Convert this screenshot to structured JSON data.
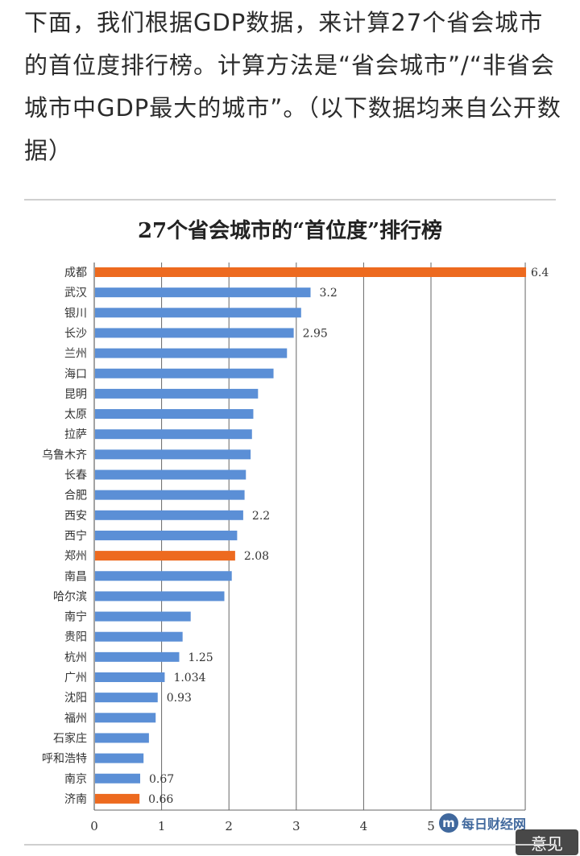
{
  "intro_text": "下面，我们根据GDP数据，来计算27个省会城市的首位度排行榜。计算方法是“省会城市”/“非省会城市中GDP最大的城市”。（以下数据均来自公开数据）",
  "watermark": {
    "logo_text": "每日财经网",
    "logo_mark": "m",
    "badge_text": "意见"
  },
  "colors": {
    "blue": "#5b8fd6",
    "orange": "#ed6a1f",
    "grid": "#666666"
  },
  "chart_data": {
    "type": "bar",
    "orientation": "horizontal",
    "title": "27个省会城市的“首位度”排行榜",
    "xlim": [
      0,
      6.4
    ],
    "xticks": [
      0,
      1,
      2,
      3,
      4,
      5
    ],
    "grid": "vertical",
    "categories": [
      "成都",
      "武汉",
      "银川",
      "长沙",
      "兰州",
      "海口",
      "昆明",
      "太原",
      "拉萨",
      "乌鲁木齐",
      "长春",
      "合肥",
      "西安",
      "西宁",
      "郑州",
      "南昌",
      "哈尔滨",
      "南宁",
      "贵阳",
      "杭州",
      "广州",
      "沈阳",
      "福州",
      "石家庄",
      "呼和浩特",
      "南京",
      "济南"
    ],
    "values": [
      6.4,
      3.2,
      3.06,
      2.95,
      2.85,
      2.65,
      2.42,
      2.35,
      2.33,
      2.31,
      2.24,
      2.22,
      2.2,
      2.11,
      2.08,
      2.03,
      1.92,
      1.42,
      1.3,
      1.25,
      1.034,
      0.93,
      0.9,
      0.8,
      0.72,
      0.67,
      0.66
    ],
    "data_labels": [
      "6.4",
      "3.2",
      "",
      "2.95",
      "",
      "",
      "",
      "",
      "",
      "",
      "",
      "",
      "2.2",
      "",
      "2.08",
      "",
      "",
      "",
      "",
      "1.25",
      "1.034",
      "0.93",
      "",
      "",
      "",
      "0.67",
      "0.66"
    ],
    "highlight": [
      "成都",
      "郑州",
      "济南"
    ]
  }
}
